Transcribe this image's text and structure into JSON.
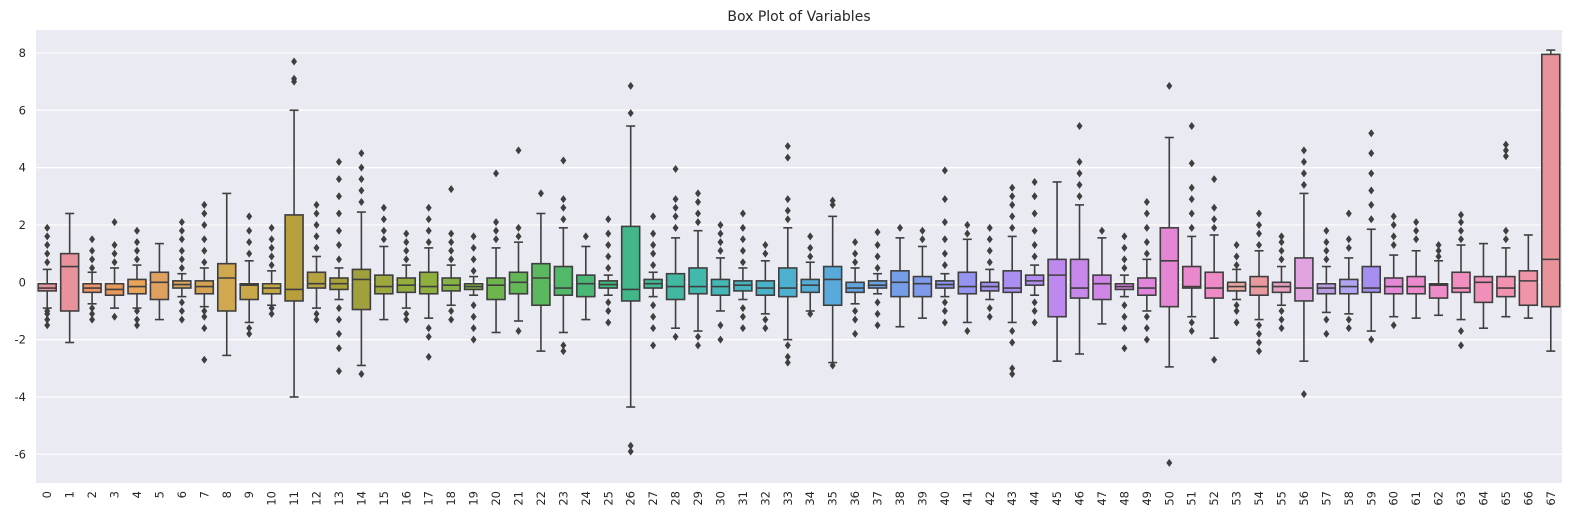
{
  "chart_data": {
    "type": "box",
    "title": "Box Plot of Variables",
    "xlabel": "",
    "ylabel": "",
    "ylim": [
      -7,
      8.8
    ],
    "grid": true,
    "y_ticks": [
      -6,
      -4,
      -2,
      0,
      2,
      4,
      6,
      8
    ],
    "categories": [
      "0",
      "1",
      "2",
      "3",
      "4",
      "5",
      "6",
      "7",
      "8",
      "9",
      "10",
      "11",
      "12",
      "13",
      "14",
      "15",
      "16",
      "17",
      "18",
      "19",
      "20",
      "21",
      "22",
      "23",
      "24",
      "25",
      "26",
      "27",
      "28",
      "29",
      "30",
      "31",
      "32",
      "33",
      "34",
      "35",
      "36",
      "37",
      "38",
      "39",
      "40",
      "41",
      "42",
      "43",
      "44",
      "45",
      "46",
      "47",
      "48",
      "49",
      "50",
      "51",
      "52",
      "53",
      "54",
      "55",
      "56",
      "57",
      "58",
      "59",
      "60",
      "61",
      "62",
      "63",
      "64",
      "65",
      "66",
      "67"
    ],
    "colors": [
      "#e8939c",
      "#e8939c",
      "#f0956a",
      "#e89a5c",
      "#e8a55a",
      "#e0a060",
      "#d9a55a",
      "#d4a250",
      "#cfa84f",
      "#c9a84a",
      "#c2a845",
      "#b89f3d",
      "#b5a240",
      "#a9a13a",
      "#a0a03c",
      "#9da93e",
      "#94ac3c",
      "#8fb03f",
      "#86b243",
      "#7eb446",
      "#6fb54e",
      "#64b757",
      "#5cb85f",
      "#52b86a",
      "#4ab874",
      "#45b87e",
      "#42b88a",
      "#42b896",
      "#42b8a1",
      "#43b8ac",
      "#45b7b7",
      "#47b5c0",
      "#4ab3c8",
      "#4eb0cf",
      "#53add5",
      "#59aadb",
      "#61a6e0",
      "#6aa2e4",
      "#749ee8",
      "#7f9aeb",
      "#8a97ee",
      "#9594f0",
      "#a091f1",
      "#aa8ef1",
      "#b48bf0",
      "#be89ee",
      "#c787eb",
      "#d086e7",
      "#d885e2",
      "#df85dc",
      "#e586d5",
      "#ea88cd",
      "#ee8ac5",
      "#e9aaa0",
      "#e89a9f",
      "#e6a0c0",
      "#e2a4e0",
      "#b99ce0",
      "#b0a4f0",
      "#a48ff0",
      "#e688d8",
      "#ec8ad0",
      "#ee8cc8",
      "#f08ec0",
      "#f090b8",
      "#f092b0",
      "#f094a8",
      "#e8929a"
    ],
    "boxes": [
      {
        "label": "0",
        "whislo": -0.9,
        "q1": -0.3,
        "med": -0.2,
        "q3": -0.05,
        "whishi": 0.45,
        "fliers": [
          -1.5,
          -1.3,
          -1.1,
          -1.0,
          0.7,
          1.0,
          1.3,
          1.6,
          1.9
        ]
      },
      {
        "label": "1",
        "whislo": -2.1,
        "q1": -1.0,
        "med": 0.55,
        "q3": 1.0,
        "whishi": 2.4,
        "fliers": []
      },
      {
        "label": "2",
        "whislo": -0.75,
        "q1": -0.35,
        "med": -0.2,
        "q3": -0.05,
        "whishi": 0.35,
        "fliers": [
          -1.3,
          -1.1,
          -0.9,
          0.5,
          0.8,
          1.1,
          1.5
        ]
      },
      {
        "label": "3",
        "whislo": -0.9,
        "q1": -0.45,
        "med": -0.25,
        "q3": -0.05,
        "whishi": 0.5,
        "fliers": [
          -1.2,
          0.7,
          1.0,
          1.3,
          2.1
        ]
      },
      {
        "label": "4",
        "whislo": -0.9,
        "q1": -0.4,
        "med": -0.15,
        "q3": 0.1,
        "whishi": 0.6,
        "fliers": [
          -1.5,
          -1.3,
          -1.0,
          0.8,
          1.1,
          1.4,
          1.8
        ]
      },
      {
        "label": "5",
        "whislo": -1.3,
        "q1": -0.6,
        "med": 0.0,
        "q3": 0.35,
        "whishi": 1.35,
        "fliers": []
      },
      {
        "label": "6",
        "whislo": -0.5,
        "q1": -0.2,
        "med": -0.08,
        "q3": 0.05,
        "whishi": 0.3,
        "fliers": [
          -1.3,
          -1.0,
          -0.7,
          0.5,
          0.8,
          1.1,
          1.5,
          1.8,
          2.1
        ]
      },
      {
        "label": "7",
        "whislo": -0.85,
        "q1": -0.4,
        "med": -0.15,
        "q3": 0.05,
        "whishi": 0.5,
        "fliers": [
          -2.7,
          -1.6,
          -1.2,
          -1.0,
          0.7,
          1.1,
          1.5,
          2.0,
          2.4,
          2.7
        ]
      },
      {
        "label": "8",
        "whislo": -2.55,
        "q1": -1.0,
        "med": 0.15,
        "q3": 0.65,
        "whishi": 3.1,
        "fliers": []
      },
      {
        "label": "9",
        "whislo": -1.4,
        "q1": -0.6,
        "med": -0.1,
        "q3": -0.05,
        "whishi": 0.75,
        "fliers": [
          -1.8,
          -1.6,
          1.0,
          1.4,
          1.8,
          2.3
        ]
      },
      {
        "label": "10",
        "whislo": -0.8,
        "q1": -0.4,
        "med": -0.2,
        "q3": -0.05,
        "whishi": 0.4,
        "fliers": [
          -1.1,
          -0.9,
          0.6,
          0.9,
          1.2,
          1.5,
          1.9
        ]
      },
      {
        "label": "11",
        "whislo": -4.0,
        "q1": -0.65,
        "med": -0.25,
        "q3": 2.35,
        "whishi": 6.0,
        "fliers": [
          7.0,
          7.1,
          7.7
        ]
      },
      {
        "label": "12",
        "whislo": -0.9,
        "q1": -0.2,
        "med": -0.05,
        "q3": 0.35,
        "whishi": 0.9,
        "fliers": [
          -1.3,
          -1.1,
          1.2,
          1.6,
          2.0,
          2.4,
          2.7
        ]
      },
      {
        "label": "13",
        "whislo": -0.6,
        "q1": -0.25,
        "med": -0.05,
        "q3": 0.15,
        "whishi": 0.5,
        "fliers": [
          -3.1,
          -2.3,
          -1.8,
          -1.3,
          -0.9,
          0.8,
          1.3,
          1.8,
          2.4,
          3.0,
          3.6,
          4.2
        ]
      },
      {
        "label": "14",
        "whislo": -2.9,
        "q1": -0.95,
        "med": 0.1,
        "q3": 0.45,
        "whishi": 2.45,
        "fliers": [
          -3.2,
          2.8,
          3.2,
          3.6,
          4.0,
          4.5
        ]
      },
      {
        "label": "15",
        "whislo": -1.3,
        "q1": -0.4,
        "med": -0.15,
        "q3": 0.25,
        "whishi": 1.25,
        "fliers": [
          1.5,
          1.8,
          2.2,
          2.6
        ]
      },
      {
        "label": "16",
        "whislo": -0.9,
        "q1": -0.35,
        "med": -0.1,
        "q3": 0.15,
        "whishi": 0.6,
        "fliers": [
          -1.3,
          -1.1,
          0.8,
          1.1,
          1.4,
          1.7
        ]
      },
      {
        "label": "17",
        "whislo": -1.25,
        "q1": -0.4,
        "med": -0.15,
        "q3": 0.35,
        "whishi": 1.2,
        "fliers": [
          -2.6,
          -1.9,
          -1.6,
          1.4,
          1.8,
          2.2,
          2.6
        ]
      },
      {
        "label": "18",
        "whislo": -0.8,
        "q1": -0.3,
        "med": -0.1,
        "q3": 0.15,
        "whishi": 0.6,
        "fliers": [
          -1.3,
          -1.0,
          0.8,
          1.1,
          1.4,
          1.7,
          3.25
        ]
      },
      {
        "label": "19",
        "whislo": -0.45,
        "q1": -0.25,
        "med": -0.15,
        "q3": -0.05,
        "whishi": 0.2,
        "fliers": [
          -2.0,
          -1.6,
          -1.2,
          -0.8,
          0.4,
          0.8,
          1.2,
          1.6
        ]
      },
      {
        "label": "20",
        "whislo": -1.75,
        "q1": -0.6,
        "med": -0.1,
        "q3": 0.15,
        "whishi": 1.2,
        "fliers": [
          1.5,
          1.8,
          2.1,
          3.8
        ]
      },
      {
        "label": "21",
        "whislo": -1.35,
        "q1": -0.4,
        "med": 0.0,
        "q3": 0.35,
        "whishi": 1.4,
        "fliers": [
          -1.7,
          1.6,
          1.9,
          4.6
        ]
      },
      {
        "label": "22",
        "whislo": -2.4,
        "q1": -0.8,
        "med": 0.15,
        "q3": 0.65,
        "whishi": 2.4,
        "fliers": [
          3.1
        ]
      },
      {
        "label": "23",
        "whislo": -1.75,
        "q1": -0.45,
        "med": -0.2,
        "q3": 0.55,
        "whishi": 1.9,
        "fliers": [
          -2.4,
          -2.2,
          2.2,
          2.6,
          2.9,
          4.25
        ]
      },
      {
        "label": "24",
        "whislo": -1.3,
        "q1": -0.5,
        "med": -0.05,
        "q3": 0.25,
        "whishi": 1.25,
        "fliers": [
          1.6
        ]
      },
      {
        "label": "25",
        "whislo": -0.45,
        "q1": -0.2,
        "med": -0.08,
        "q3": 0.05,
        "whishi": 0.25,
        "fliers": [
          -1.4,
          -1.0,
          -0.7,
          0.5,
          0.9,
          1.3,
          1.7,
          2.2
        ]
      },
      {
        "label": "26",
        "whislo": -4.35,
        "q1": -0.65,
        "med": -0.25,
        "q3": 1.95,
        "whishi": 5.45,
        "fliers": [
          -5.9,
          -5.7,
          5.9,
          6.85
        ]
      },
      {
        "label": "27",
        "whislo": -0.5,
        "q1": -0.2,
        "med": -0.05,
        "q3": 0.1,
        "whishi": 0.35,
        "fliers": [
          -2.2,
          -1.6,
          -1.2,
          -0.8,
          0.6,
          1.0,
          1.3,
          1.7,
          2.3
        ]
      },
      {
        "label": "28",
        "whislo": -1.6,
        "q1": -0.6,
        "med": -0.15,
        "q3": 0.3,
        "whishi": 1.55,
        "fliers": [
          -1.9,
          1.9,
          2.3,
          2.6,
          2.9,
          3.95
        ]
      },
      {
        "label": "29",
        "whislo": -1.7,
        "q1": -0.4,
        "med": -0.15,
        "q3": 0.5,
        "whishi": 1.8,
        "fliers": [
          -2.2,
          -1.9,
          2.1,
          2.4,
          2.8,
          3.1
        ]
      },
      {
        "label": "30",
        "whislo": -1.0,
        "q1": -0.45,
        "med": -0.15,
        "q3": 0.1,
        "whishi": 0.85,
        "fliers": [
          -2.0,
          -1.5,
          1.1,
          1.4,
          1.7,
          2.0
        ]
      },
      {
        "label": "31",
        "whislo": -0.6,
        "q1": -0.3,
        "med": -0.1,
        "q3": 0.05,
        "whishi": 0.5,
        "fliers": [
          -1.6,
          -1.2,
          -0.9,
          0.7,
          1.1,
          1.5,
          1.9,
          2.4
        ]
      },
      {
        "label": "32",
        "whislo": -1.1,
        "q1": -0.45,
        "med": -0.2,
        "q3": 0.05,
        "whishi": 0.75,
        "fliers": [
          -1.6,
          -1.3,
          1.0,
          1.3
        ]
      },
      {
        "label": "33",
        "whislo": -2.0,
        "q1": -0.5,
        "med": -0.2,
        "q3": 0.5,
        "whishi": 1.9,
        "fliers": [
          -2.8,
          -2.6,
          -2.2,
          2.2,
          2.5,
          2.9,
          4.35,
          4.75
        ]
      },
      {
        "label": "34",
        "whislo": -1.0,
        "q1": -0.35,
        "med": -0.1,
        "q3": 0.1,
        "whishi": 0.7,
        "fliers": [
          -1.1,
          0.9,
          1.2,
          1.6
        ]
      },
      {
        "label": "35",
        "whislo": -2.8,
        "q1": -0.8,
        "med": 0.1,
        "q3": 0.55,
        "whishi": 2.3,
        "fliers": [
          -2.9,
          2.7,
          2.85
        ]
      },
      {
        "label": "36",
        "whislo": -0.75,
        "q1": -0.35,
        "med": -0.2,
        "q3": 0.0,
        "whishi": 0.5,
        "fliers": [
          -1.8,
          -1.3,
          -1.0,
          0.7,
          1.0,
          1.4
        ]
      },
      {
        "label": "37",
        "whislo": -0.4,
        "q1": -0.2,
        "med": -0.1,
        "q3": 0.05,
        "whishi": 0.3,
        "fliers": [
          -1.5,
          -1.1,
          -0.7,
          0.5,
          0.9,
          1.3,
          1.75
        ]
      },
      {
        "label": "38",
        "whislo": -1.55,
        "q1": -0.5,
        "med": 0.0,
        "q3": 0.4,
        "whishi": 1.55,
        "fliers": [
          1.9
        ]
      },
      {
        "label": "39",
        "whislo": -1.25,
        "q1": -0.5,
        "med": -0.05,
        "q3": 0.2,
        "whishi": 1.25,
        "fliers": [
          1.5,
          1.8
        ]
      },
      {
        "label": "40",
        "whislo": -0.5,
        "q1": -0.2,
        "med": -0.08,
        "q3": 0.05,
        "whishi": 0.3,
        "fliers": [
          -1.4,
          -1.0,
          -0.7,
          0.6,
          1.0,
          1.5,
          2.1,
          2.9,
          3.9
        ]
      },
      {
        "label": "41",
        "whislo": -1.4,
        "q1": -0.4,
        "med": -0.15,
        "q3": 0.35,
        "whishi": 1.5,
        "fliers": [
          -1.7,
          1.7,
          2.0
        ]
      },
      {
        "label": "42",
        "whislo": -0.6,
        "q1": -0.3,
        "med": -0.15,
        "q3": 0.0,
        "whishi": 0.45,
        "fliers": [
          -1.2,
          -0.9,
          0.7,
          1.1,
          1.5,
          1.9
        ]
      },
      {
        "label": "43",
        "whislo": -1.4,
        "q1": -0.35,
        "med": -0.2,
        "q3": 0.4,
        "whishi": 1.6,
        "fliers": [
          -3.2,
          -3.0,
          -2.1,
          -1.7,
          1.9,
          2.3,
          2.7,
          3.0,
          3.3
        ]
      },
      {
        "label": "44",
        "whislo": -0.45,
        "q1": -0.1,
        "med": 0.05,
        "q3": 0.25,
        "whishi": 0.6,
        "fliers": [
          -1.4,
          -1.0,
          -0.7,
          0.9,
          1.3,
          1.8,
          2.4,
          3.0,
          3.5
        ]
      },
      {
        "label": "45",
        "whislo": -2.75,
        "q1": -1.2,
        "med": 0.25,
        "q3": 0.8,
        "whishi": 3.5,
        "fliers": []
      },
      {
        "label": "46",
        "whislo": -2.5,
        "q1": -0.55,
        "med": -0.2,
        "q3": 0.8,
        "whishi": 2.7,
        "fliers": [
          3.0,
          3.4,
          3.8,
          4.2,
          5.45
        ]
      },
      {
        "label": "47",
        "whislo": -1.45,
        "q1": -0.6,
        "med": -0.05,
        "q3": 0.25,
        "whishi": 1.55,
        "fliers": [
          1.8
        ]
      },
      {
        "label": "48",
        "whislo": -0.5,
        "q1": -0.25,
        "med": -0.15,
        "q3": -0.05,
        "whishi": 0.25,
        "fliers": [
          -2.3,
          -1.6,
          -1.2,
          -0.8,
          0.5,
          0.8,
          1.2,
          1.6
        ]
      },
      {
        "label": "49",
        "whislo": -1.0,
        "q1": -0.45,
        "med": -0.2,
        "q3": 0.15,
        "whishi": 0.8,
        "fliers": [
          -2.0,
          -1.6,
          -1.2,
          1.0,
          1.4,
          1.9,
          2.4,
          2.8
        ]
      },
      {
        "label": "50",
        "whislo": -2.95,
        "q1": -0.85,
        "med": 0.75,
        "q3": 1.9,
        "whishi": 5.05,
        "fliers": [
          -6.3,
          6.85
        ]
      },
      {
        "label": "51",
        "whislo": -1.2,
        "q1": -0.2,
        "med": -0.15,
        "q3": 0.55,
        "whishi": 1.6,
        "fliers": [
          -1.7,
          -1.4,
          1.9,
          2.4,
          2.9,
          3.3,
          4.15,
          5.45
        ]
      },
      {
        "label": "52",
        "whislo": -1.95,
        "q1": -0.55,
        "med": -0.2,
        "q3": 0.35,
        "whishi": 1.65,
        "fliers": [
          -2.7,
          1.9,
          2.2,
          2.6,
          3.6
        ]
      },
      {
        "label": "53",
        "whislo": -0.6,
        "q1": -0.3,
        "med": -0.15,
        "q3": 0.0,
        "whishi": 0.45,
        "fliers": [
          -1.4,
          -1.0,
          -0.8,
          0.6,
          0.9,
          1.3
        ]
      },
      {
        "label": "54",
        "whislo": -1.3,
        "q1": -0.45,
        "med": -0.15,
        "q3": 0.2,
        "whishi": 1.1,
        "fliers": [
          -2.4,
          -2.1,
          -1.8,
          -1.5,
          1.3,
          1.7,
          2.0,
          2.4
        ]
      },
      {
        "label": "55",
        "whislo": -0.8,
        "q1": -0.35,
        "med": -0.15,
        "q3": 0.0,
        "whishi": 0.55,
        "fliers": [
          -1.6,
          -1.3,
          -1.0,
          0.8,
          1.1,
          1.4,
          1.6
        ]
      },
      {
        "label": "56",
        "whislo": -2.75,
        "q1": -0.65,
        "med": -0.2,
        "q3": 0.85,
        "whishi": 3.1,
        "fliers": [
          -3.9,
          3.4,
          3.8,
          4.2,
          4.6
        ]
      },
      {
        "label": "57",
        "whislo": -1.05,
        "q1": -0.4,
        "med": -0.2,
        "q3": -0.05,
        "whishi": 0.55,
        "fliers": [
          -1.8,
          -1.3,
          0.8,
          1.1,
          1.4,
          1.8
        ]
      },
      {
        "label": "58",
        "whislo": -1.1,
        "q1": -0.4,
        "med": -0.15,
        "q3": 0.1,
        "whishi": 0.85,
        "fliers": [
          -1.6,
          -1.3,
          1.2,
          1.5,
          2.4
        ]
      },
      {
        "label": "59",
        "whislo": -1.7,
        "q1": -0.35,
        "med": -0.2,
        "q3": 0.55,
        "whishi": 1.85,
        "fliers": [
          -2.0,
          2.2,
          2.7,
          3.2,
          3.8,
          4.5,
          5.2
        ]
      },
      {
        "label": "60",
        "whislo": -1.2,
        "q1": -0.4,
        "med": -0.15,
        "q3": 0.15,
        "whishi": 0.95,
        "fliers": [
          -1.5,
          1.3,
          1.6,
          2.0,
          2.3
        ]
      },
      {
        "label": "61",
        "whislo": -1.25,
        "q1": -0.4,
        "med": -0.15,
        "q3": 0.2,
        "whishi": 1.1,
        "fliers": [
          1.5,
          1.8,
          2.1
        ]
      },
      {
        "label": "62",
        "whislo": -1.15,
        "q1": -0.55,
        "med": -0.1,
        "q3": -0.05,
        "whishi": 0.75,
        "fliers": [
          0.9,
          1.1,
          1.3
        ]
      },
      {
        "label": "63",
        "whislo": -1.3,
        "q1": -0.35,
        "med": -0.2,
        "q3": 0.35,
        "whishi": 1.3,
        "fliers": [
          -2.2,
          -1.7,
          1.5,
          1.8,
          2.1,
          2.35
        ]
      },
      {
        "label": "64",
        "whislo": -1.6,
        "q1": -0.7,
        "med": 0.0,
        "q3": 0.2,
        "whishi": 1.35,
        "fliers": []
      },
      {
        "label": "65",
        "whislo": -1.2,
        "q1": -0.5,
        "med": -0.2,
        "q3": 0.2,
        "whishi": 1.2,
        "fliers": [
          1.5,
          1.8,
          4.4,
          4.6,
          4.8
        ]
      },
      {
        "label": "66",
        "whislo": -1.25,
        "q1": -0.8,
        "med": 0.05,
        "q3": 0.4,
        "whishi": 1.65,
        "fliers": []
      },
      {
        "label": "67",
        "whislo": -2.4,
        "q1": -0.85,
        "med": 0.8,
        "q3": 7.95,
        "whishi": 8.1,
        "fliers": []
      }
    ]
  }
}
